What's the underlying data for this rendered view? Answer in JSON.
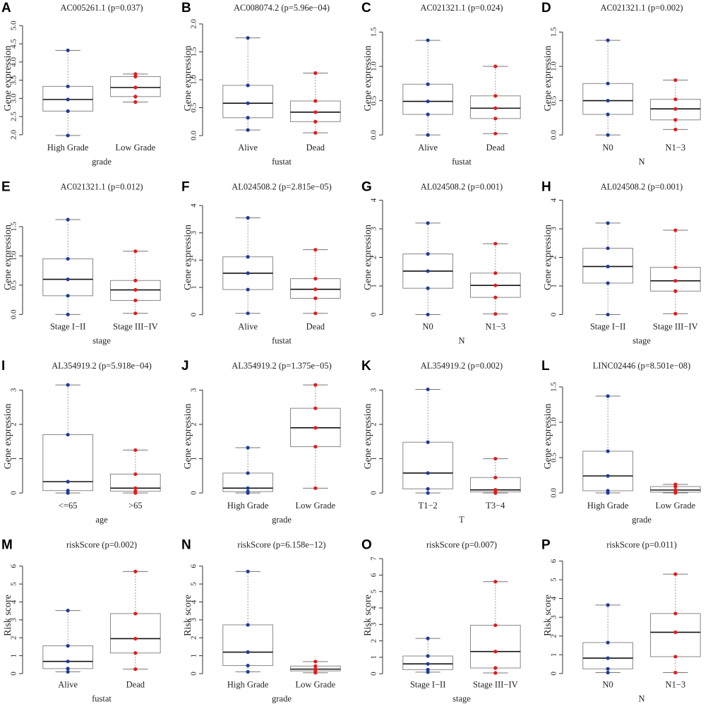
{
  "chart_data": [
    {
      "type": "box",
      "letter": "A",
      "title": "AC005261.1 (p=0.037)",
      "ylabel": "Gene expression",
      "xlabel": "grade",
      "categories": [
        "High Grade",
        "Low Grade"
      ],
      "colors": [
        "#1f3c99",
        "#e41a1c"
      ],
      "ylim": [
        1.9,
        5.2
      ],
      "yticks": [
        {
          "value": 2,
          "label": "2.0"
        },
        2.5,
        {
          "value": 3,
          "label": "3.0"
        },
        3.5,
        {
          "value": 4,
          "label": "4.0"
        },
        4.5,
        {
          "value": 5,
          "label": "5.0"
        }
      ],
      "stats": [
        {
          "low": 1.98,
          "q1": 2.65,
          "median": 2.97,
          "q3": 3.33,
          "high": 4.32
        },
        {
          "low": 2.9,
          "q1": 3.05,
          "median": 3.3,
          "q3": 3.6,
          "high": 3.67
        }
      ]
    },
    {
      "type": "box",
      "letter": "B",
      "title": "AC008074.2 (p=5.96e−04)",
      "ylabel": "Gene expression",
      "xlabel": "fustat",
      "categories": [
        "Alive",
        "Dead"
      ],
      "colors": [
        "#1f3c99",
        "#e41a1c"
      ],
      "ylim": [
        -0.05,
        2.1
      ],
      "yticks": [
        {
          "value": 0,
          "label": "0.0"
        },
        0.5,
        {
          "value": 1,
          "label": "1.0"
        },
        1.5,
        {
          "value": 2,
          "label": "2.0"
        }
      ],
      "stats": [
        {
          "low": 0.1,
          "q1": 0.32,
          "median": 0.58,
          "q3": 0.9,
          "high": 1.75
        },
        {
          "low": 0.05,
          "q1": 0.25,
          "median": 0.42,
          "q3": 0.62,
          "high": 1.12
        }
      ]
    },
    {
      "type": "box",
      "letter": "C",
      "title": "AC021321.1 (p=0.024)",
      "ylabel": "Gene expression",
      "xlabel": "fustat",
      "categories": [
        "Alive",
        "Dead"
      ],
      "colors": [
        "#1f3c99",
        "#e41a1c"
      ],
      "ylim": [
        -0.05,
        1.7
      ],
      "yticks": [
        {
          "value": 0,
          "label": "0.0"
        },
        0.5,
        {
          "value": 1,
          "label": "1.0"
        },
        1.5
      ],
      "stats": [
        {
          "low": 0,
          "q1": 0.3,
          "median": 0.49,
          "q3": 0.74,
          "high": 1.38
        },
        {
          "low": 0.02,
          "q1": 0.24,
          "median": 0.39,
          "q3": 0.57,
          "high": 1.0
        }
      ]
    },
    {
      "type": "box",
      "letter": "D",
      "title": "AC021321.1 (p=0.002)",
      "ylabel": "Gene expression",
      "xlabel": "N",
      "categories": [
        "N0",
        "N1−3"
      ],
      "colors": [
        "#1f3c99",
        "#e41a1c"
      ],
      "ylim": [
        -0.05,
        1.7
      ],
      "yticks": [
        {
          "value": 0,
          "label": "0.0"
        },
        0.5,
        {
          "value": 1,
          "label": "1.0"
        },
        1.5
      ],
      "stats": [
        {
          "low": 0,
          "q1": 0.3,
          "median": 0.5,
          "q3": 0.75,
          "high": 1.38
        },
        {
          "low": 0.08,
          "q1": 0.22,
          "median": 0.38,
          "q3": 0.52,
          "high": 0.8
        }
      ]
    },
    {
      "type": "box",
      "letter": "E",
      "title": "AC021321.1 (p=0.012)",
      "ylabel": "Gene expression",
      "xlabel": "stage",
      "categories": [
        "Stage I−II",
        "Stage III−IV"
      ],
      "colors": [
        "#1f3c99",
        "#e41a1c"
      ],
      "ylim": [
        -0.05,
        2.0
      ],
      "yticks": [
        {
          "value": 0,
          "label": "0.0"
        },
        0.5,
        {
          "value": 1,
          "label": "1.0"
        },
        1.5
      ],
      "stats": [
        {
          "low": 0,
          "q1": 0.32,
          "median": 0.6,
          "q3": 0.95,
          "high": 1.62
        },
        {
          "low": 0.02,
          "q1": 0.24,
          "median": 0.42,
          "q3": 0.58,
          "high": 1.08
        }
      ]
    },
    {
      "type": "box",
      "letter": "F",
      "title": "AL024508.2 (p=2.815e−05)",
      "ylabel": "Gene expression",
      "xlabel": "fustat",
      "categories": [
        "Alive",
        "Dead"
      ],
      "colors": [
        "#1f3c99",
        "#e41a1c"
      ],
      "ylim": [
        -0.1,
        4.3
      ],
      "yticks": [
        0,
        1,
        2,
        3,
        4
      ],
      "stats": [
        {
          "low": 0.05,
          "q1": 0.92,
          "median": 1.52,
          "q3": 2.12,
          "high": 3.55
        },
        {
          "low": 0.05,
          "q1": 0.6,
          "median": 0.93,
          "q3": 1.32,
          "high": 2.38
        }
      ]
    },
    {
      "type": "box",
      "letter": "G",
      "title": "AL024508.2 (p=0.001)",
      "ylabel": "Gene expression",
      "xlabel": "N",
      "categories": [
        "N0",
        "N1−3"
      ],
      "colors": [
        "#1f3c99",
        "#e41a1c"
      ],
      "ylim": [
        -0.1,
        4.1
      ],
      "yticks": [
        0,
        1,
        2,
        3,
        4
      ],
      "stats": [
        {
          "low": 0,
          "q1": 0.92,
          "median": 1.52,
          "q3": 2.12,
          "high": 3.2
        },
        {
          "low": 0.02,
          "q1": 0.6,
          "median": 1.02,
          "q3": 1.45,
          "high": 2.48
        }
      ]
    },
    {
      "type": "box",
      "letter": "H",
      "title": "AL024508.2 (p=0.001)",
      "ylabel": "Gene expression",
      "xlabel": "stage",
      "categories": [
        "Stage I−II",
        "Stage III−IV"
      ],
      "colors": [
        "#1f3c99",
        "#e41a1c"
      ],
      "ylim": [
        -0.1,
        4.1
      ],
      "yticks": [
        0,
        1,
        2,
        3,
        4
      ],
      "stats": [
        {
          "low": 0,
          "q1": 1.1,
          "median": 1.68,
          "q3": 2.32,
          "high": 3.2
        },
        {
          "low": 0.03,
          "q1": 0.82,
          "median": 1.18,
          "q3": 1.65,
          "high": 2.95
        }
      ]
    },
    {
      "type": "box",
      "letter": "I",
      "title": "AL354919.2 (p=5.918e−04)",
      "ylabel": "Gene expression",
      "xlabel": "age",
      "categories": [
        "<=65",
        ">65"
      ],
      "colors": [
        "#1f3c99",
        "#e41a1c"
      ],
      "ylim": [
        -0.1,
        3.4
      ],
      "yticks": [
        0,
        1,
        2,
        3
      ],
      "stats": [
        {
          "low": 0,
          "q1": 0.07,
          "median": 0.33,
          "q3": 1.7,
          "high": 3.15
        },
        {
          "low": 0,
          "q1": 0.05,
          "median": 0.14,
          "q3": 0.55,
          "high": 1.25
        }
      ]
    },
    {
      "type": "box",
      "letter": "J",
      "title": "AL354919.2 (p=1.375e−05)",
      "ylabel": "Gene expression",
      "xlabel": "grade",
      "categories": [
        "High Grade",
        "Low Grade"
      ],
      "colors": [
        "#1f3c99",
        "#e41a1c"
      ],
      "ylim": [
        -0.1,
        3.4
      ],
      "yticks": [
        0,
        1,
        2,
        3
      ],
      "stats": [
        {
          "low": 0,
          "q1": 0.04,
          "median": 0.14,
          "q3": 0.58,
          "high": 1.32
        },
        {
          "low": 0.14,
          "q1": 1.35,
          "median": 1.9,
          "q3": 2.47,
          "high": 3.15
        }
      ]
    },
    {
      "type": "box",
      "letter": "K",
      "title": "AL354919.2 (p=0.002)",
      "ylabel": "Gene expression",
      "xlabel": "T",
      "categories": [
        "T1−2",
        "T3−4"
      ],
      "colors": [
        "#1f3c99",
        "#e41a1c"
      ],
      "ylim": [
        -0.1,
        3.4
      ],
      "yticks": [
        0,
        1,
        2,
        3
      ],
      "stats": [
        {
          "low": 0,
          "q1": 0.12,
          "median": 0.58,
          "q3": 1.48,
          "high": 3.02
        },
        {
          "low": 0,
          "q1": 0.03,
          "median": 0.09,
          "q3": 0.45,
          "high": 1.0
        }
      ]
    },
    {
      "type": "box",
      "letter": "L",
      "title": "LINC02446 (p=8.501e−08)",
      "ylabel": "Gene expression",
      "xlabel": "grade",
      "categories": [
        "High Grade",
        "Low Grade"
      ],
      "colors": [
        "#1f3c99",
        "#e41a1c"
      ],
      "ylim": [
        -0.05,
        1.65
      ],
      "yticks": [
        {
          "value": 0,
          "label": "0.0"
        },
        0.5,
        {
          "value": 1,
          "label": "1.0"
        },
        1.5
      ],
      "stats": [
        {
          "low": 0,
          "q1": 0.03,
          "median": 0.24,
          "q3": 0.59,
          "high": 1.37
        },
        {
          "low": 0,
          "q1": 0.01,
          "median": 0.04,
          "q3": 0.09,
          "high": 0.12
        }
      ]
    },
    {
      "type": "box",
      "letter": "M",
      "title": "riskScore (p=0.002)",
      "ylabel": "Risk score",
      "xlabel": "fustat",
      "categories": [
        "Alive",
        "Dead"
      ],
      "colors": [
        "#1f3c99",
        "#e41a1c"
      ],
      "ylim": [
        -0.1,
        6.6
      ],
      "yticks": [
        0,
        1,
        2,
        3,
        4,
        5,
        6
      ],
      "stats": [
        {
          "low": 0.1,
          "q1": 0.28,
          "median": 0.68,
          "q3": 1.55,
          "high": 3.52
        },
        {
          "low": 0.25,
          "q1": 1.15,
          "median": 1.95,
          "q3": 3.35,
          "high": 5.7
        }
      ]
    },
    {
      "type": "box",
      "letter": "N",
      "title": "riskScore (p=6.158e−12)",
      "ylabel": "Risk score",
      "xlabel": "grade",
      "categories": [
        "High Grade",
        "Low Grade"
      ],
      "colors": [
        "#1f3c99",
        "#e41a1c"
      ],
      "ylim": [
        -0.1,
        6.6
      ],
      "yticks": [
        0,
        1,
        2,
        3,
        4,
        5,
        6
      ],
      "stats": [
        {
          "low": 0.1,
          "q1": 0.45,
          "median": 1.2,
          "q3": 2.72,
          "high": 5.7
        },
        {
          "low": 0.05,
          "q1": 0.15,
          "median": 0.25,
          "q3": 0.42,
          "high": 0.67
        }
      ]
    },
    {
      "type": "box",
      "letter": "O",
      "title": "riskScore (p=0.007)",
      "ylabel": "Risk score",
      "xlabel": "stage",
      "categories": [
        "Stage I−II",
        "Stage III−IV"
      ],
      "colors": [
        "#1f3c99",
        "#e41a1c"
      ],
      "ylim": [
        -0.1,
        7.2
      ],
      "yticks": [
        0,
        1,
        2,
        3,
        4,
        5,
        6,
        7
      ],
      "stats": [
        {
          "low": 0.1,
          "q1": 0.25,
          "median": 0.6,
          "q3": 1.08,
          "high": 2.15
        },
        {
          "low": 0.05,
          "q1": 0.35,
          "median": 1.35,
          "q3": 2.95,
          "high": 5.6
        }
      ]
    },
    {
      "type": "box",
      "letter": "P",
      "title": "riskScore (p=0.011)",
      "ylabel": "Risk score",
      "xlabel": "N",
      "categories": [
        "N0",
        "N1−3"
      ],
      "colors": [
        "#1f3c99",
        "#e41a1c"
      ],
      "ylim": [
        -0.1,
        6.3
      ],
      "yticks": [
        0,
        1,
        2,
        3,
        4,
        5,
        6
      ],
      "stats": [
        {
          "low": 0.05,
          "q1": 0.25,
          "median": 0.82,
          "q3": 1.65,
          "high": 3.65
        },
        {
          "low": 0.05,
          "q1": 0.9,
          "median": 2.2,
          "q3": 3.2,
          "high": 5.3
        }
      ]
    }
  ]
}
